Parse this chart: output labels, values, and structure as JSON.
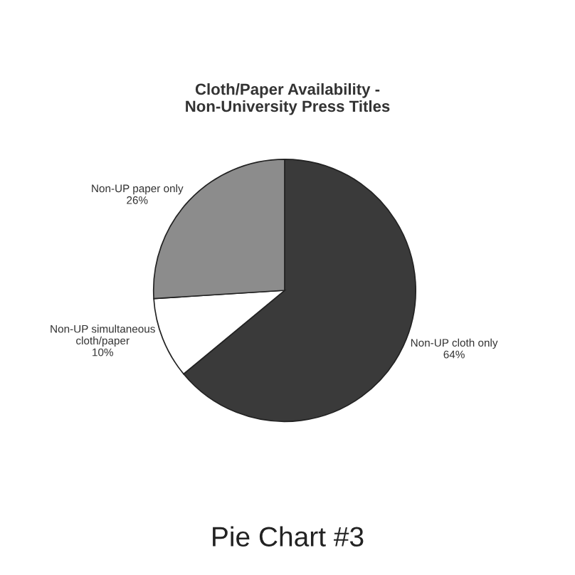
{
  "chart_data": {
    "type": "pie",
    "title": "Cloth/Paper Availability -\nNon-University Press Titles",
    "categories": [
      "Non-UP cloth only",
      "Non-UP simultaneous\ncloth/paper",
      "Non-UP paper only"
    ],
    "values": [
      64,
      10,
      26
    ],
    "value_labels": [
      "64%",
      "10%",
      "26%"
    ],
    "colors": [
      "#3a3a3a",
      "#ffffff",
      "#8c8c8c"
    ],
    "annotations": [
      "Pie Chart #3"
    ]
  }
}
